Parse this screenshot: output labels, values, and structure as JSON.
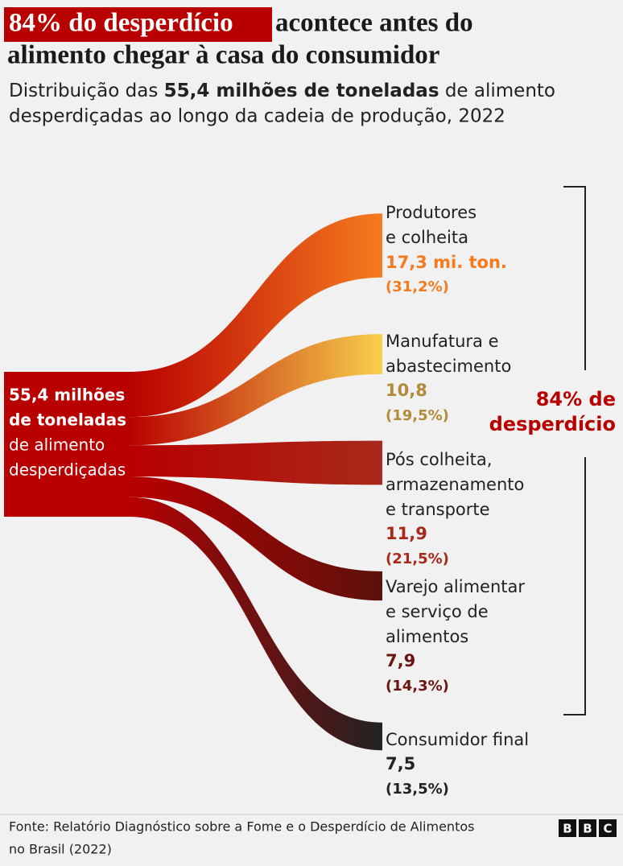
{
  "chart_data": {
    "type": "sankey",
    "title_highlight": "84% do desperdício",
    "title_lines": [
      "acontece antes do",
      "alimento chegar à casa do consumidor"
    ],
    "subtitle_parts": [
      "Distribuição das ",
      "55,4 milhões de toneladas",
      " de alimento",
      "desperdiçadas ao longo da cadeia de produção, 2022"
    ],
    "total": 55.4,
    "total_label_bold": [
      "55,4 milhões",
      "de toneladas"
    ],
    "total_label_rest": [
      "de alimento",
      "desperdiçadas"
    ],
    "source_color": "#b80000",
    "series": [
      {
        "name": [
          "Produtores",
          "e colheita"
        ],
        "color": "#f57c1f",
        "text_color": "#f47a20",
        "value": 17.3,
        "value_label": "17,3 mi. ton.",
        "share": 31.2,
        "share_label": "(31,2%)"
      },
      {
        "name": [
          "Manufatura e",
          "abastecimento"
        ],
        "color": "#f7cf4c",
        "text_color": "#b18a3a",
        "value": 10.8,
        "value_label": "10,8",
        "share": 19.5,
        "share_label": "(19,5%)"
      },
      {
        "name": [
          "Pós colheita,",
          "armazenamento",
          "e transporte"
        ],
        "color": "#a8291b",
        "text_color": "#a8291b",
        "value": 11.9,
        "value_label": "11,9",
        "share": 21.5,
        "share_label": "(21,5%)"
      },
      {
        "name": [
          "Varejo alimentar",
          "e serviço de",
          "alimentos"
        ],
        "color": "#5c110b",
        "text_color": "#6b1510",
        "value": 7.9,
        "value_label": "7,9",
        "share": 14.3,
        "share_label": "(14,3%)"
      },
      {
        "name": [
          "Consumidor final"
        ],
        "color": "#222222",
        "text_color": "#222222",
        "value": 7.5,
        "value_label": "7,5",
        "share": 13.5,
        "share_label": "(13,5%)"
      }
    ],
    "bracket_label": [
      "84% de",
      "desperdício"
    ],
    "footer": [
      "Fonte: Relatório Diagnóstico sobre a Fome e o Desperdício de Alimentos",
      "no Brasil (2022)"
    ],
    "logo": [
      "B",
      "B",
      "C"
    ]
  }
}
